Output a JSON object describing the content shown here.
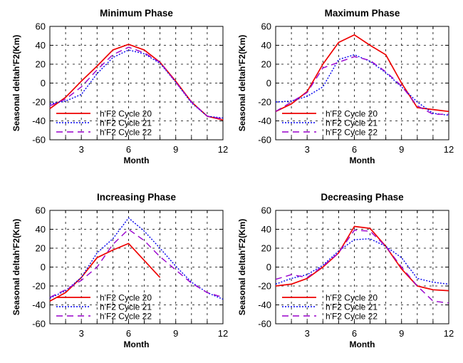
{
  "colors": {
    "cycle20": "#ee0000",
    "cycle21": "#0000ee",
    "cycle22": "#9900cc"
  },
  "chart_data": [
    {
      "type": "line",
      "title": "Minimum Phase",
      "xlabel": "Month",
      "ylabel": "Seasonal deltah'F2(Km)",
      "xlim": [
        1,
        12
      ],
      "ylim": [
        -60,
        60
      ],
      "xticks": [
        3,
        6,
        9,
        12
      ],
      "yticks": [
        -60,
        -40,
        -20,
        0,
        20,
        40,
        60
      ],
      "grid": true,
      "legend_position": "lower-left",
      "series": [
        {
          "name": "h'F2 Cycle 20",
          "x": [
            1,
            2,
            3,
            4,
            5,
            6,
            7,
            8,
            9,
            10,
            11,
            12
          ],
          "y": [
            -27,
            -15,
            2,
            18,
            35,
            41,
            35,
            22,
            2,
            -20,
            -35,
            -39
          ]
        },
        {
          "name": "h'F2 Cycle 21",
          "x": [
            1,
            2,
            3,
            4,
            5,
            6,
            7,
            8,
            9,
            10,
            11,
            12
          ],
          "y": [
            -22,
            -19,
            -12,
            10,
            27,
            35,
            31,
            21,
            1,
            -21,
            -35,
            -37
          ]
        },
        {
          "name": "h'F2 Cycle 22",
          "x": [
            1,
            2,
            3,
            4,
            5,
            6,
            7,
            8,
            9,
            10,
            11,
            12
          ],
          "y": [
            -24,
            -17,
            -4,
            14,
            30,
            38,
            32,
            22,
            1,
            -20,
            -35,
            -38
          ]
        }
      ]
    },
    {
      "type": "line",
      "title": "Maximum Phase",
      "xlabel": "Month",
      "ylabel": "Seasonal deltah'F2(Km)",
      "xlim": [
        1,
        12
      ],
      "ylim": [
        -60,
        60
      ],
      "xticks": [
        3,
        6,
        9,
        12
      ],
      "yticks": [
        -60,
        -40,
        -20,
        0,
        20,
        40,
        60
      ],
      "grid": true,
      "legend_position": "lower-left",
      "series": [
        {
          "name": "h'F2 Cycle 20",
          "x": [
            1,
            2,
            3,
            4,
            5,
            6,
            7,
            8,
            9,
            10,
            11,
            12
          ],
          "y": [
            -30,
            -22,
            -9,
            20,
            43,
            51,
            40,
            30,
            0,
            -26,
            -28,
            -30
          ]
        },
        {
          "name": "h'F2 Cycle 21",
          "x": [
            1,
            2,
            3,
            4,
            5,
            6,
            7,
            8,
            9,
            10,
            11,
            12
          ],
          "y": [
            -20,
            -19,
            -14,
            -4,
            25,
            30,
            23,
            11,
            -4,
            -20,
            -32,
            -34
          ]
        },
        {
          "name": "h'F2 Cycle 22",
          "x": [
            1,
            2,
            3,
            4,
            5,
            6,
            7,
            8,
            9,
            10,
            11,
            12
          ],
          "y": [
            -30,
            -20,
            -10,
            16,
            22,
            28,
            24,
            12,
            -3,
            -24,
            -33,
            -33
          ]
        }
      ]
    },
    {
      "type": "line",
      "title": "Increasing Phase",
      "xlabel": "Month",
      "ylabel": "Seasonal deltah'F2(Km)",
      "xlim": [
        1,
        12
      ],
      "ylim": [
        -60,
        60
      ],
      "xticks": [
        3,
        6,
        9,
        12
      ],
      "yticks": [
        -60,
        -40,
        -20,
        0,
        20,
        40,
        60
      ],
      "grid": true,
      "legend_position": "lower-left",
      "series": [
        {
          "name": "h'F2 Cycle 20",
          "x": [
            1,
            2,
            3,
            4,
            5,
            6,
            7,
            8
          ],
          "y": [
            -36,
            -27,
            -11,
            10,
            18,
            25,
            7,
            -11
          ]
        },
        {
          "name": "h'F2 Cycle 21",
          "x": [
            1,
            2,
            3,
            4,
            5,
            6,
            7,
            8,
            9,
            10,
            11,
            12
          ],
          "y": [
            -33,
            -25,
            -11,
            15,
            30,
            52,
            38,
            20,
            1,
            -16,
            -27,
            -34
          ]
        },
        {
          "name": "h'F2 Cycle 22",
          "x": [
            1,
            2,
            3,
            4,
            5,
            6,
            7,
            8,
            9,
            10,
            11,
            12
          ],
          "y": [
            -32,
            -24,
            -14,
            0,
            24,
            40,
            28,
            11,
            -3,
            -17,
            -27,
            -32
          ]
        }
      ]
    },
    {
      "type": "line",
      "title": "Decreasing Phase",
      "xlabel": "Month",
      "ylabel": "Seasonal deltah'F2(Km)",
      "xlim": [
        1,
        12
      ],
      "ylim": [
        -60,
        60
      ],
      "xticks": [
        3,
        6,
        9,
        12
      ],
      "yticks": [
        -60,
        -40,
        -20,
        0,
        20,
        40,
        60
      ],
      "grid": true,
      "legend_position": "lower-left",
      "series": [
        {
          "name": "h'F2 Cycle 20",
          "x": [
            1,
            2,
            3,
            4,
            5,
            6,
            7,
            8,
            9,
            10,
            11,
            12
          ],
          "y": [
            -20,
            -18,
            -12,
            0,
            15,
            43,
            41,
            22,
            -2,
            -20,
            -24,
            -25
          ]
        },
        {
          "name": "h'F2 Cycle 21",
          "x": [
            1,
            2,
            3,
            4,
            5,
            6,
            7,
            8,
            9,
            10,
            11,
            12
          ],
          "y": [
            -18,
            -12,
            -8,
            2,
            17,
            29,
            30,
            22,
            10,
            -12,
            -16,
            -18
          ]
        },
        {
          "name": "h'F2 Cycle 22",
          "x": [
            1,
            2,
            3,
            4,
            5,
            6,
            7,
            8,
            9,
            10,
            11,
            12
          ],
          "y": [
            -13,
            -8,
            -11,
            1,
            15,
            39,
            38,
            22,
            0,
            -20,
            -36,
            -38
          ]
        }
      ]
    }
  ]
}
